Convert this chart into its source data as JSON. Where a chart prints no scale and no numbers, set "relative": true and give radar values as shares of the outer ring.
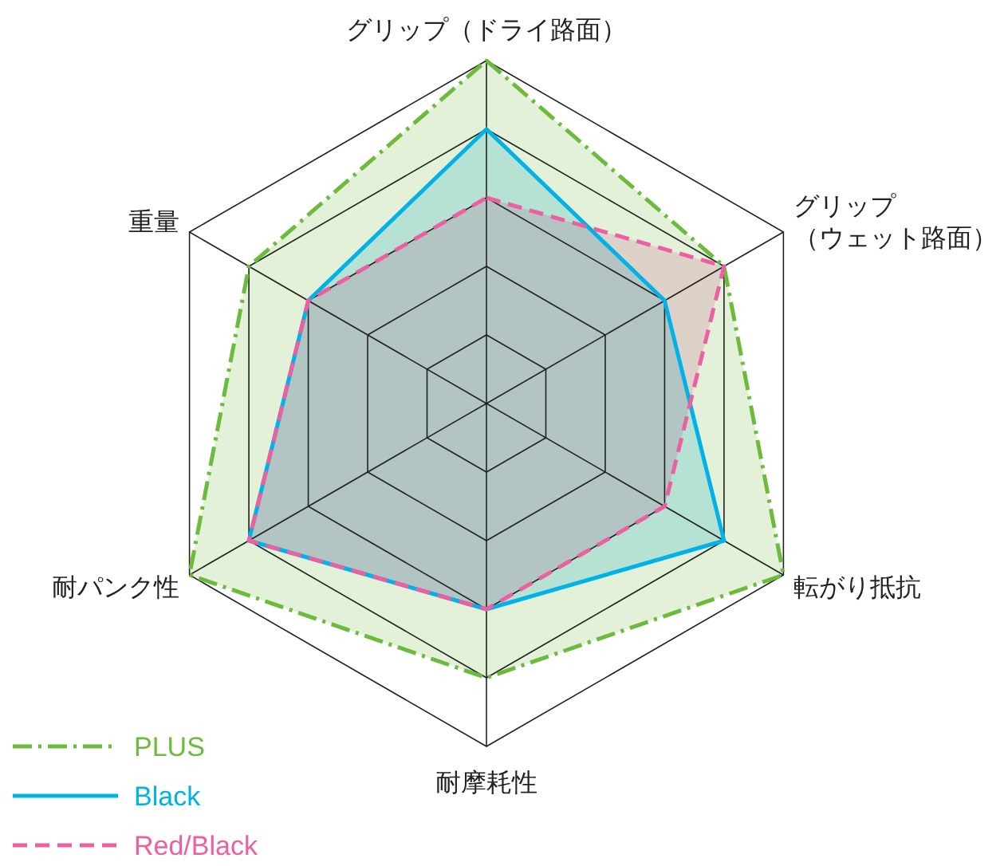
{
  "chart_data": {
    "type": "radar",
    "relative": true,
    "categories": [
      "グリップ（ドライ路面）",
      "グリップ（ウェット路面）",
      "転がり抵抗",
      "耐摩耗性",
      "耐パンク性",
      "重量"
    ],
    "legend": "bottom left",
    "series": [
      {
        "name": "PLUS",
        "color": "#6cbb3c",
        "line_style": "dashdot",
        "values": [
          1.0,
          0.8,
          1.0,
          0.8,
          1.0,
          0.8
        ]
      },
      {
        "name": "Black",
        "color": "#00b2e8",
        "line_style": "solid",
        "values": [
          0.8,
          0.6,
          0.8,
          0.6,
          0.8,
          0.6
        ]
      },
      {
        "name": "Red/Black",
        "color": "#ec5fa0",
        "line_style": "dashed",
        "values": [
          0.6,
          0.8,
          0.6,
          0.6,
          0.8,
          0.6
        ]
      }
    ]
  }
}
